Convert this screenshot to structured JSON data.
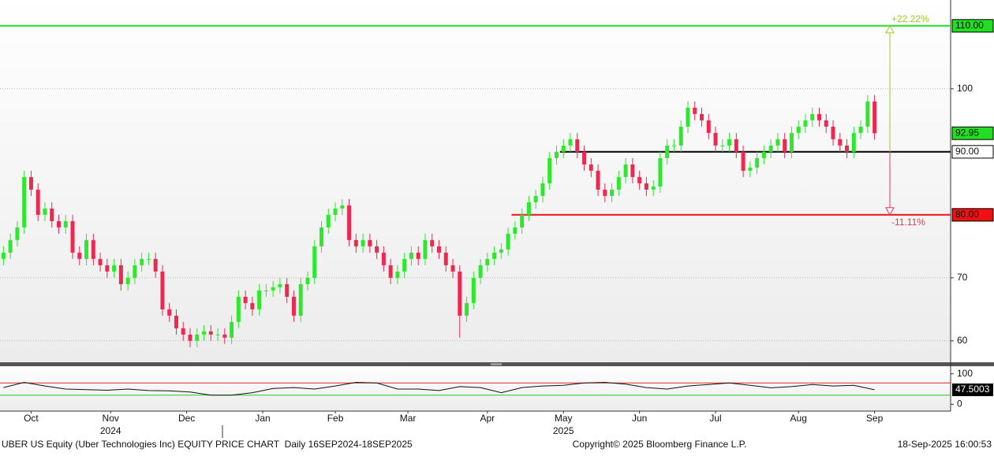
{
  "chart_data": {
    "type": "candlestick",
    "up_color": "#2ee82e",
    "down_color": "#ee2850",
    "ylim": [
      56.6,
      114.1
    ],
    "yticks": [
      60,
      70,
      100
    ],
    "grid": true,
    "xlim": [
      -0.5,
      137
    ],
    "xticks": [
      {
        "value": 4,
        "label": "Oct"
      },
      {
        "value": 15.5,
        "label": "Nov"
      },
      {
        "value": 26.5,
        "label": "Dec"
      },
      {
        "value": 37.5,
        "label": "Jan"
      },
      {
        "value": 48,
        "label": "Feb"
      },
      {
        "value": 58.5,
        "label": "Mar"
      },
      {
        "value": 70,
        "label": "Apr"
      },
      {
        "value": 81,
        "label": "May"
      },
      {
        "value": 92,
        "label": "Jun"
      },
      {
        "value": 103,
        "label": "Jul"
      },
      {
        "value": 115,
        "label": "Aug"
      },
      {
        "value": 126,
        "label": "Sep"
      }
    ],
    "year_ticks": [
      {
        "value": 15.5,
        "label": "2024"
      },
      {
        "value": 81,
        "label": "2025"
      }
    ],
    "open": [
      73,
      74,
      76,
      78,
      86,
      84,
      80,
      81,
      79,
      78,
      79,
      74,
      73,
      76,
      73,
      72,
      71,
      72,
      69,
      70,
      72,
      73,
      73,
      71,
      65,
      64,
      62,
      61,
      60,
      61,
      61.5,
      61,
      61,
      60.5,
      63,
      67,
      66,
      65,
      68,
      68,
      68.5,
      69,
      67,
      64,
      69,
      70,
      75,
      78,
      80,
      81,
      81.5,
      76,
      75,
      76,
      75,
      74,
      72,
      70,
      71,
      73,
      74,
      73,
      76,
      75,
      74,
      72,
      71,
      64,
      66,
      70,
      72,
      73,
      74,
      74.5,
      77,
      78,
      80,
      82,
      83,
      85,
      89,
      90,
      91,
      92,
      90,
      88,
      87,
      84,
      83,
      84,
      86,
      88,
      86,
      85,
      84,
      84.5,
      89,
      91,
      91,
      94,
      97,
      96,
      95,
      93,
      91,
      91,
      92,
      90,
      87,
      87.5,
      89,
      90,
      91,
      92,
      90,
      93,
      94,
      95,
      96,
      95,
      94,
      92,
      91,
      90,
      93,
      94,
      98
    ],
    "high": [
      75,
      77,
      79,
      87,
      87,
      85,
      82,
      82,
      80,
      80,
      80,
      75,
      77,
      77,
      74,
      73,
      73,
      73,
      71,
      73,
      74,
      74,
      74,
      72,
      66,
      65,
      63,
      62,
      62,
      62.5,
      62.5,
      62,
      62,
      64,
      68,
      68,
      67,
      69,
      69,
      69.5,
      70,
      70,
      68,
      70,
      71,
      76,
      79,
      81,
      82,
      82.5,
      82.5,
      77,
      77,
      77,
      76,
      75,
      73,
      72,
      74,
      75,
      75,
      77,
      77,
      76,
      75,
      73,
      72,
      67,
      71,
      73,
      74,
      75,
      75.5,
      78,
      79,
      81,
      83,
      84,
      86,
      90,
      91,
      92,
      93,
      93,
      91,
      89,
      88,
      85,
      85,
      87,
      89,
      89,
      87,
      86,
      85.5,
      90,
      92,
      92,
      95,
      98,
      98,
      97,
      96,
      94,
      92,
      93,
      93,
      91,
      88.5,
      90,
      91,
      92,
      93,
      93,
      94,
      95,
      96,
      97,
      97,
      96,
      95,
      93,
      92,
      94,
      95,
      99,
      99
    ],
    "low": [
      72,
      73,
      75,
      77,
      83,
      79,
      79,
      78,
      77,
      77,
      73,
      72,
      72,
      72,
      71,
      70,
      70,
      68,
      68,
      69,
      71,
      72,
      70,
      64,
      63,
      61,
      60,
      59,
      59,
      60,
      60,
      60,
      59.5,
      59.5,
      62,
      65,
      64,
      64,
      67,
      67,
      67.5,
      66,
      63,
      63,
      68,
      69,
      74,
      77,
      79,
      80,
      75,
      74,
      74,
      74,
      73,
      71,
      69,
      69,
      70,
      72,
      72,
      72,
      74,
      73,
      71,
      70,
      60.5,
      63,
      65,
      69,
      71,
      72,
      73,
      73.5,
      76,
      77,
      79,
      81,
      82,
      84,
      88,
      89,
      90,
      89,
      87,
      86,
      83,
      82,
      82,
      83,
      85,
      85,
      84,
      83,
      83,
      83.5,
      88,
      90,
      90,
      93,
      95,
      94,
      92,
      90,
      90,
      90,
      89,
      86,
      86,
      86.5,
      88,
      89,
      90,
      89,
      89,
      92,
      93,
      94,
      94,
      93,
      91,
      90,
      89,
      89,
      92,
      93,
      91.95
    ],
    "close": [
      74,
      76,
      78,
      86,
      84,
      80,
      81,
      79,
      78,
      79,
      74,
      73,
      76,
      73,
      72,
      71,
      72,
      69,
      70,
      72,
      73,
      73,
      71,
      65,
      64,
      62,
      61,
      60,
      61,
      61.5,
      61,
      61,
      60.5,
      63,
      67,
      66,
      65,
      68,
      68,
      68.5,
      69,
      67,
      64,
      69,
      70,
      75,
      78,
      80,
      81,
      81.5,
      76,
      75,
      76,
      75,
      74,
      72,
      70,
      71,
      73,
      74,
      73,
      76,
      75,
      74,
      72,
      71,
      64,
      66,
      70,
      72,
      73,
      74,
      74.5,
      77,
      78,
      80,
      82,
      83,
      85,
      89,
      90,
      91,
      92,
      90,
      88,
      87,
      84,
      83,
      84,
      86,
      88,
      86,
      85,
      84,
      84.5,
      89,
      91,
      91,
      94,
      97,
      96,
      95,
      93,
      91,
      91,
      92,
      90,
      87,
      87.5,
      89,
      90,
      91,
      92,
      90,
      93,
      94,
      95,
      96,
      95,
      94,
      92,
      91,
      90,
      93,
      94,
      98,
      92.95
    ],
    "levels": [
      {
        "value": 110,
        "label": "110.00",
        "color": "#22dd22",
        "x_from": -0.5
      },
      {
        "value": 90,
        "label": "90.00",
        "color": "#000000",
        "x_from": 80.5
      },
      {
        "value": 80,
        "label": "80.00",
        "color": "#ee1111",
        "x_from": 73.5
      }
    ],
    "last_price": {
      "value": 92.95,
      "label": "92.95",
      "color": "#22dd22"
    },
    "arrows": [
      {
        "from": 90,
        "to": 110,
        "label": "+22.22%",
        "color": "#99cc22"
      },
      {
        "from": 90,
        "to": 80,
        "label": "-11.11%",
        "color": "#ee3355"
      }
    ],
    "indicator": {
      "type": "line",
      "ylim": [
        -22.5,
        125
      ],
      "yticks": [
        0,
        100
      ],
      "color": "#111111",
      "values": [
        55,
        72,
        60,
        50,
        48,
        46,
        50,
        45,
        44,
        40,
        30,
        30,
        38,
        52,
        55,
        50,
        60,
        72,
        70,
        50,
        50,
        45,
        58,
        55,
        38,
        55,
        60,
        62,
        70,
        72,
        66,
        55,
        50,
        60,
        65,
        70,
        62,
        54,
        58,
        65,
        60,
        62,
        47.5003
      ],
      "bands": [
        {
          "value": 70,
          "color": "#ee2222"
        },
        {
          "value": 30,
          "color": "#22cc22"
        }
      ],
      "last": {
        "value": 47.5003,
        "label": "47.5003"
      }
    }
  },
  "footer": {
    "left": "UBER US Equity (Uber Technologies Inc) EQUITY PRICE CHART  Daily 16SEP2024-18SEP2025",
    "center": "Copyright© 2025 Bloomberg Finance L.P.",
    "right": "18-Sep-2025 16:00:53"
  }
}
